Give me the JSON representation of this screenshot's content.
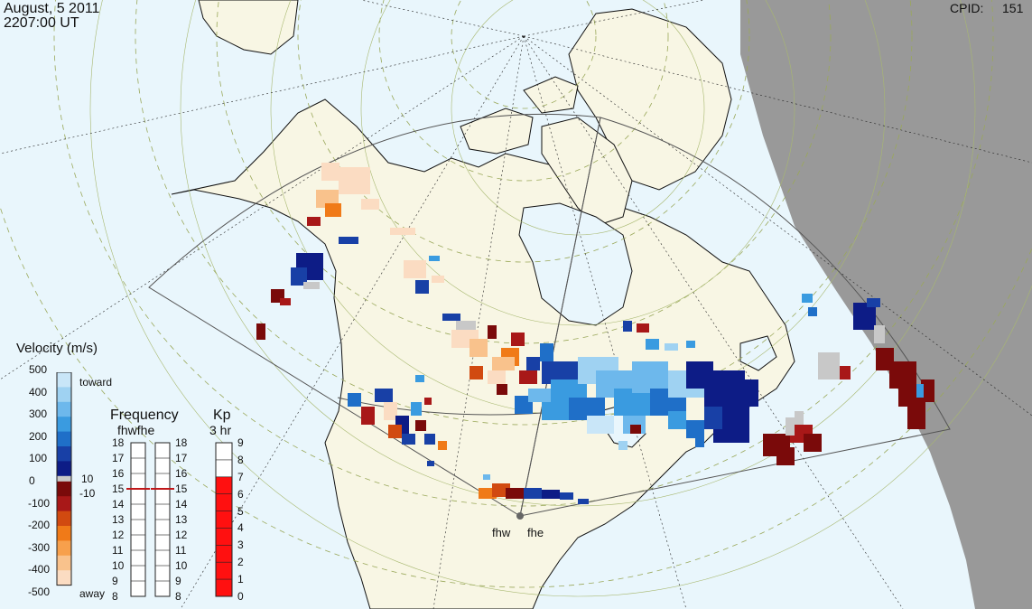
{
  "header": {
    "date": "August, 5 2011",
    "time": "2207:00 UT",
    "cpid_label": "CPID:",
    "cpid_value": "151"
  },
  "radars": {
    "west": "fhw",
    "east": "fhe"
  },
  "velocity_scale": {
    "title": "Velocity (m/s)",
    "toward_label": "toward",
    "away_label": "away",
    "ticks": [
      "500",
      "400",
      "300",
      "200",
      "100",
      "0",
      "-100",
      "-200",
      "-300",
      "-400",
      "-500"
    ],
    "threshold_pos": "10",
    "threshold_neg": "-10",
    "colors_toward": [
      "#c9e6f8",
      "#9fd2f2",
      "#6db8ec",
      "#3a9be0",
      "#1f6fc8",
      "#1840a6",
      "#0d1c86"
    ],
    "colors_away": [
      "#7a0a0a",
      "#a81818",
      "#d14a10",
      "#f07a18",
      "#f7a04c",
      "#f9c28c",
      "#fbdcc2"
    ],
    "gray_color": "#c8c8c8"
  },
  "frequency": {
    "title": "Frequency",
    "subtitle": "fhwfhe",
    "ticks": [
      "18",
      "17",
      "16",
      "15",
      "14",
      "13",
      "12",
      "11",
      "10",
      "9",
      "8"
    ],
    "fhw_value_mhz": 15,
    "fhe_value_mhz": 15
  },
  "kp": {
    "title": "Kp",
    "subtitle": "3 hr",
    "ticks": [
      "9",
      "8",
      "7",
      "6",
      "5",
      "4",
      "3",
      "2",
      "1",
      "0"
    ],
    "value": 7
  },
  "map_colors": {
    "ocean": "#e9f6fc",
    "land": "#f8f6e4",
    "night": "#999999"
  }
}
